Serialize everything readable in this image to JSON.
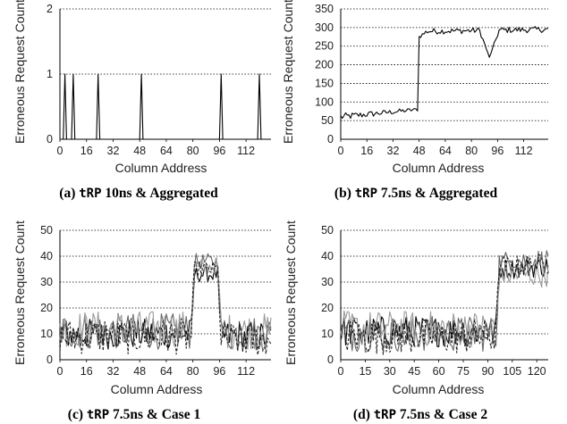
{
  "chart_data": [
    {
      "type": "line",
      "title": "",
      "xlabel": "Column Address",
      "ylabel": "Erroneous Request Count",
      "xlim": [
        0,
        127
      ],
      "ylim": [
        0,
        2
      ],
      "xticks": [
        0,
        16,
        32,
        48,
        64,
        80,
        96,
        112
      ],
      "yticks": [
        0,
        1,
        2
      ],
      "grid": "horizontal-dotted",
      "caption": {
        "prefix": "(a) ",
        "code": "tRP",
        "suffix": " 10ns & Aggregated"
      },
      "series": [
        {
          "spikes_at": [
            3,
            8,
            23,
            49,
            97,
            120
          ],
          "spike_value": 1,
          "base_value": 0
        }
      ]
    },
    {
      "type": "line",
      "title": "",
      "xlabel": "Column Address",
      "ylabel": "Erroneous Request Count",
      "xlim": [
        0,
        127
      ],
      "ylim": [
        0,
        350
      ],
      "xticks": [
        0,
        16,
        32,
        48,
        64,
        80,
        96,
        112
      ],
      "yticks": [
        0,
        50,
        100,
        150,
        200,
        250,
        300,
        350
      ],
      "grid": "horizontal-dotted",
      "caption": {
        "prefix": "(b) ",
        "code": "tRP",
        "suffix": " 7.5ns & Aggregated"
      },
      "series": [
        {
          "segments": [
            [
              0,
              60,
              10
            ],
            [
              47,
              80,
              5
            ],
            [
              48,
              275,
              5
            ],
            [
              53,
              290,
              8
            ],
            [
              127,
              295,
              8
            ]
          ],
          "dips": [
            [
              91,
              220,
              6
            ]
          ]
        }
      ]
    },
    {
      "type": "line",
      "title": "",
      "xlabel": "Column Address",
      "ylabel": "Erroneous Request Count",
      "xlim": [
        0,
        127
      ],
      "ylim": [
        0,
        50
      ],
      "xticks": [
        0,
        16,
        32,
        48,
        64,
        80,
        96,
        112
      ],
      "yticks": [
        0,
        10,
        20,
        30,
        40,
        50
      ],
      "grid": "horizontal-dotted",
      "caption": {
        "prefix": "(c) ",
        "code": "tRP",
        "suffix": " 7.5ns & Case 1"
      },
      "series": [
        {
          "segments": [
            [
              0,
              10,
              6
            ],
            [
              79,
              10,
              6
            ],
            [
              81,
              33,
              3
            ],
            [
              95,
              33,
              3
            ],
            [
              97,
              9,
              6
            ],
            [
              127,
              9,
              6
            ]
          ]
        },
        {
          "segments": [
            [
              0,
              11,
              7
            ],
            [
              79,
              11,
              7
            ],
            [
              81,
              38,
              3
            ],
            [
              95,
              38,
              3
            ],
            [
              97,
              10,
              7
            ],
            [
              127,
              10,
              7
            ]
          ]
        },
        {
          "segments": [
            [
              0,
              12,
              7
            ],
            [
              79,
              12,
              7
            ],
            [
              81,
              36,
              3
            ],
            [
              95,
              36,
              3
            ],
            [
              97,
              11,
              7
            ],
            [
              127,
              11,
              7
            ]
          ]
        },
        {
          "segments": [
            [
              0,
              9,
              7
            ],
            [
              79,
              9,
              7
            ],
            [
              81,
              35,
              3
            ],
            [
              95,
              35,
              3
            ],
            [
              97,
              8,
              7
            ],
            [
              127,
              8,
              7
            ]
          ]
        }
      ]
    },
    {
      "type": "line",
      "title": "",
      "xlabel": "Column Address",
      "ylabel": "Erroneous Request Count",
      "xlim": [
        0,
        127
      ],
      "ylim": [
        0,
        50
      ],
      "xticks": [
        0,
        15,
        30,
        45,
        60,
        75,
        90,
        105,
        120
      ],
      "yticks": [
        0,
        10,
        20,
        30,
        40,
        50
      ],
      "grid": "horizontal-dotted",
      "caption": {
        "prefix": "(d) ",
        "code": "tRP",
        "suffix": " 7.5ns & Case 2"
      },
      "series": [
        {
          "segments": [
            [
              0,
              11,
              6
            ],
            [
              95,
              11,
              6
            ],
            [
              97,
              35,
              4
            ],
            [
              127,
              36,
              4
            ]
          ]
        },
        {
          "segments": [
            [
              0,
              10,
              7
            ],
            [
              95,
              10,
              7
            ],
            [
              97,
              38,
              4
            ],
            [
              127,
              39,
              4
            ]
          ]
        },
        {
          "segments": [
            [
              0,
              12,
              7
            ],
            [
              95,
              12,
              7
            ],
            [
              97,
              33,
              5
            ],
            [
              127,
              33,
              5
            ]
          ]
        },
        {
          "segments": [
            [
              0,
              9,
              7
            ],
            [
              95,
              9,
              7
            ],
            [
              97,
              36,
              4
            ],
            [
              127,
              37,
              4
            ]
          ]
        }
      ]
    }
  ]
}
